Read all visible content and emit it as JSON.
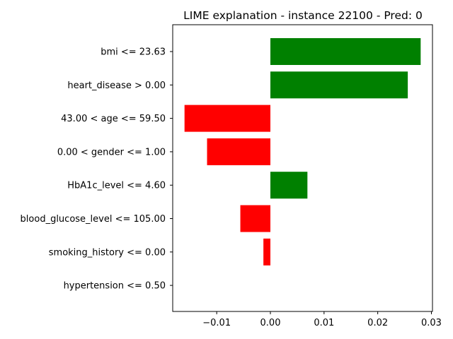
{
  "chart_data": {
    "type": "bar",
    "orientation": "horizontal",
    "title": "LIME explanation - instance 22100 - Pred: 0",
    "xlabel": "",
    "ylabel": "",
    "categories": [
      "bmi <= 23.63",
      "heart_disease > 0.00",
      "43.00 < age <= 59.50",
      "0.00 < gender <= 1.00",
      "HbA1c_level <= 4.60",
      "blood_glucose_level <= 105.00",
      "smoking_history <= 0.00",
      "hypertension <= 0.50"
    ],
    "values": [
      0.028,
      0.0256,
      -0.016,
      -0.0118,
      0.0069,
      -0.0056,
      -0.0013,
      0.0
    ],
    "xlim": [
      -0.0182,
      0.0302
    ],
    "xticks": [
      -0.01,
      0.0,
      0.01,
      0.02,
      0.03
    ],
    "xtick_labels": [
      "−0.01",
      "0.00",
      "0.01",
      "0.02",
      "0.03"
    ],
    "grid": false,
    "legend": "none",
    "colors": {
      "positive": "#008000",
      "negative": "#ff0000"
    }
  }
}
